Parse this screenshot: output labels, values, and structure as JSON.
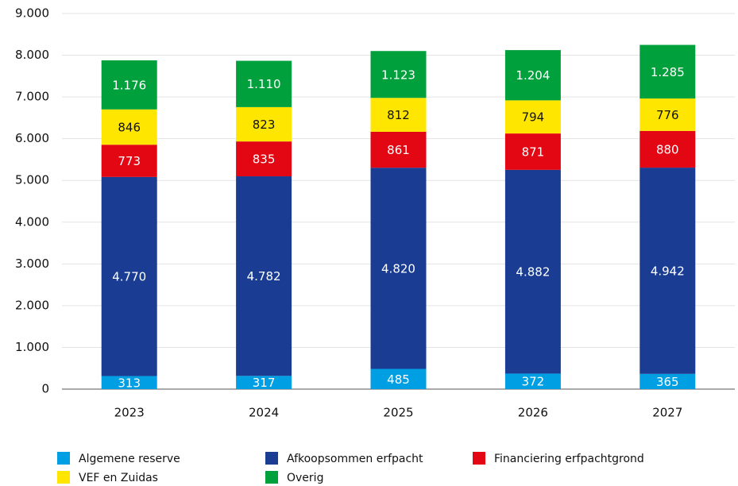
{
  "chart_data": {
    "type": "stacked_bar",
    "categories": [
      "2023",
      "2024",
      "2025",
      "2026",
      "2027"
    ],
    "series": [
      {
        "name": "Algemene reserve",
        "color": "#009fe3",
        "values": [
          313,
          317,
          485,
          372,
          365
        ],
        "value_labels": [
          "313",
          "317",
          "485",
          "372",
          "365"
        ]
      },
      {
        "name": "Afkoopsommen erfpacht",
        "color": "#1a3d93",
        "values": [
          4770,
          4782,
          4820,
          4882,
          4942
        ],
        "value_labels": [
          "4.770",
          "4.782",
          "4.820",
          "4.882",
          "4.942"
        ]
      },
      {
        "name": "Financiering erfpachtgrond",
        "color": "#e30613",
        "values": [
          773,
          835,
          861,
          871,
          880
        ],
        "value_labels": [
          "773",
          "835",
          "861",
          "871",
          "880"
        ]
      },
      {
        "name": "VEF en Zuidas",
        "color": "#ffe600",
        "values": [
          846,
          823,
          812,
          794,
          776
        ],
        "value_labels": [
          "846",
          "823",
          "812",
          "794",
          "776"
        ]
      },
      {
        "name": "Overig",
        "color": "#00a03c",
        "values": [
          1176,
          1110,
          1123,
          1204,
          1285
        ],
        "value_labels": [
          "1.176",
          "1.110",
          "1.123",
          "1.204",
          "1.285"
        ]
      }
    ],
    "ylim": [
      0,
      9000
    ],
    "yticks": [
      0,
      {
        "value": 1000,
        "label": "1.000"
      },
      {
        "value": 2000,
        "label": "2.000"
      },
      {
        "value": 3000,
        "label": "3.000"
      },
      {
        "value": 4000,
        "label": "4.000"
      },
      {
        "value": 5000,
        "label": "5.000"
      },
      {
        "value": 6000,
        "label": "6.000"
      },
      {
        "value": 7000,
        "label": "7.000"
      },
      {
        "value": 8000,
        "label": "8.000"
      },
      {
        "value": 9000,
        "label": "9.000"
      }
    ],
    "grid": true
  }
}
